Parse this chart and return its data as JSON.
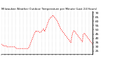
{
  "title": "Milwaukee Weather Outdoor Temperature per Minute (Last 24 Hours)",
  "line_color": "#ff0000",
  "background_color": "#ffffff",
  "grid_color": "#aaaaaa",
  "ylim": [
    22,
    72
  ],
  "yticks": [
    25,
    30,
    35,
    40,
    45,
    50,
    55,
    60,
    65,
    70
  ],
  "figsize": [
    1.6,
    0.87
  ],
  "dpi": 100,
  "num_xticks": 26,
  "temperature_profile": [
    33,
    33,
    32,
    32,
    31,
    31,
    31,
    31,
    31,
    30,
    30,
    30,
    30,
    30,
    30,
    30,
    30,
    30,
    30,
    30,
    30,
    30,
    29,
    29,
    28,
    28,
    28,
    28,
    28,
    28,
    28,
    28,
    28,
    28,
    28,
    28,
    28,
    28,
    28,
    28,
    28,
    28,
    28,
    29,
    30,
    32,
    34,
    36,
    38,
    40,
    42,
    44,
    46,
    47,
    48,
    49,
    48,
    48,
    48,
    48,
    47,
    47,
    47,
    48,
    49,
    50,
    51,
    50,
    48,
    50,
    52,
    54,
    56,
    58,
    60,
    62,
    63,
    64,
    65,
    65,
    66,
    67,
    66,
    65,
    64,
    63,
    62,
    61,
    60,
    58,
    56,
    55,
    53,
    51,
    50,
    49,
    48,
    47,
    46,
    45,
    44,
    43,
    42,
    41,
    40,
    39,
    38,
    37,
    36,
    35,
    40,
    44,
    47,
    48,
    49,
    48,
    47,
    46,
    45,
    44,
    43,
    42,
    41,
    40,
    39,
    38,
    37,
    36,
    44,
    45,
    46,
    45,
    44,
    43,
    42,
    41,
    40,
    39,
    38,
    37,
    36,
    35,
    34,
    33
  ]
}
